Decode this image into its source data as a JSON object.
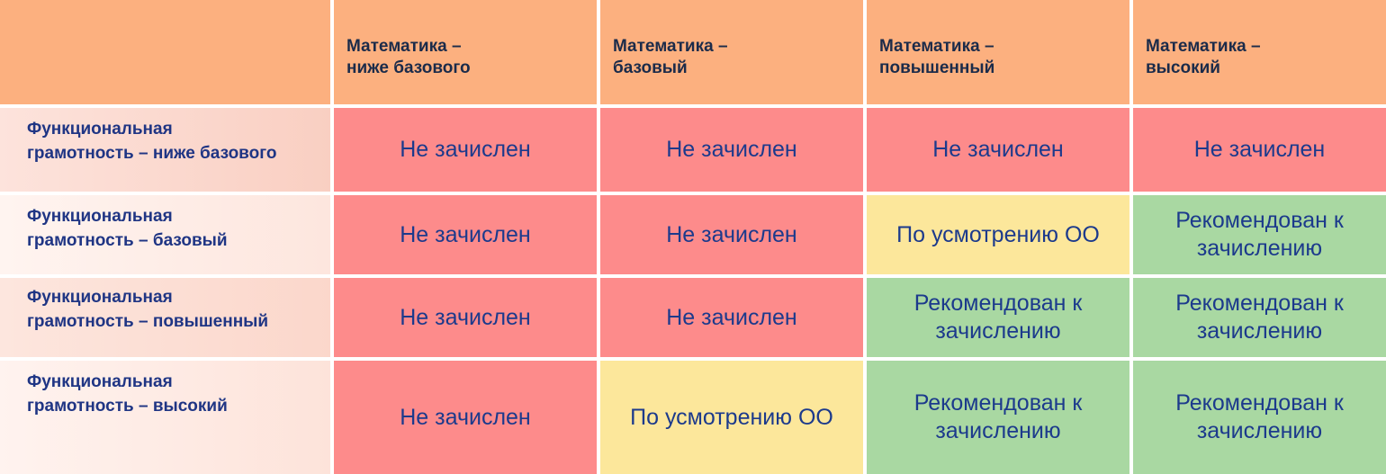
{
  "table": {
    "corner": "",
    "columns": [
      "Математика –\nниже базового",
      "Математика –\nбазовый",
      "Математика –\nповышенный",
      "Математика –\nвысокий"
    ],
    "rows": [
      {
        "label": "Функциональная\nграмотность – ниже базового",
        "cells": [
          "Не зачислен",
          "Не зачислен",
          "Не зачислен",
          "Не зачислен"
        ],
        "status": [
          "red",
          "red",
          "red",
          "red"
        ]
      },
      {
        "label": "Функциональная\nграмотность – базовый",
        "cells": [
          "Не зачислен",
          "Не зачислен",
          "По усмотрению ОО",
          "Рекомендован к\nзачислению"
        ],
        "status": [
          "red",
          "red",
          "yellow",
          "green"
        ]
      },
      {
        "label": "Функциональная\nграмотность – повышенный",
        "cells": [
          "Не зачислен",
          "Не зачислен",
          "Рекомендован к\nзачислению",
          "Рекомендован к\nзачислению"
        ],
        "status": [
          "red",
          "red",
          "green",
          "green"
        ]
      },
      {
        "label": "Функциональная\nграмотность – высокий",
        "cells": [
          "Не зачислен",
          "По усмотрению ОО",
          "Рекомендован к\nзачислению",
          "Рекомендован к\nзачислению"
        ],
        "status": [
          "red",
          "yellow",
          "green",
          "green"
        ]
      }
    ]
  },
  "colors": {
    "header": "#fcb07f",
    "not_enrolled": "#fd8b8b",
    "discretion": "#fce79b",
    "recommended": "#a9d8a2",
    "text": "#1c3a8c"
  }
}
